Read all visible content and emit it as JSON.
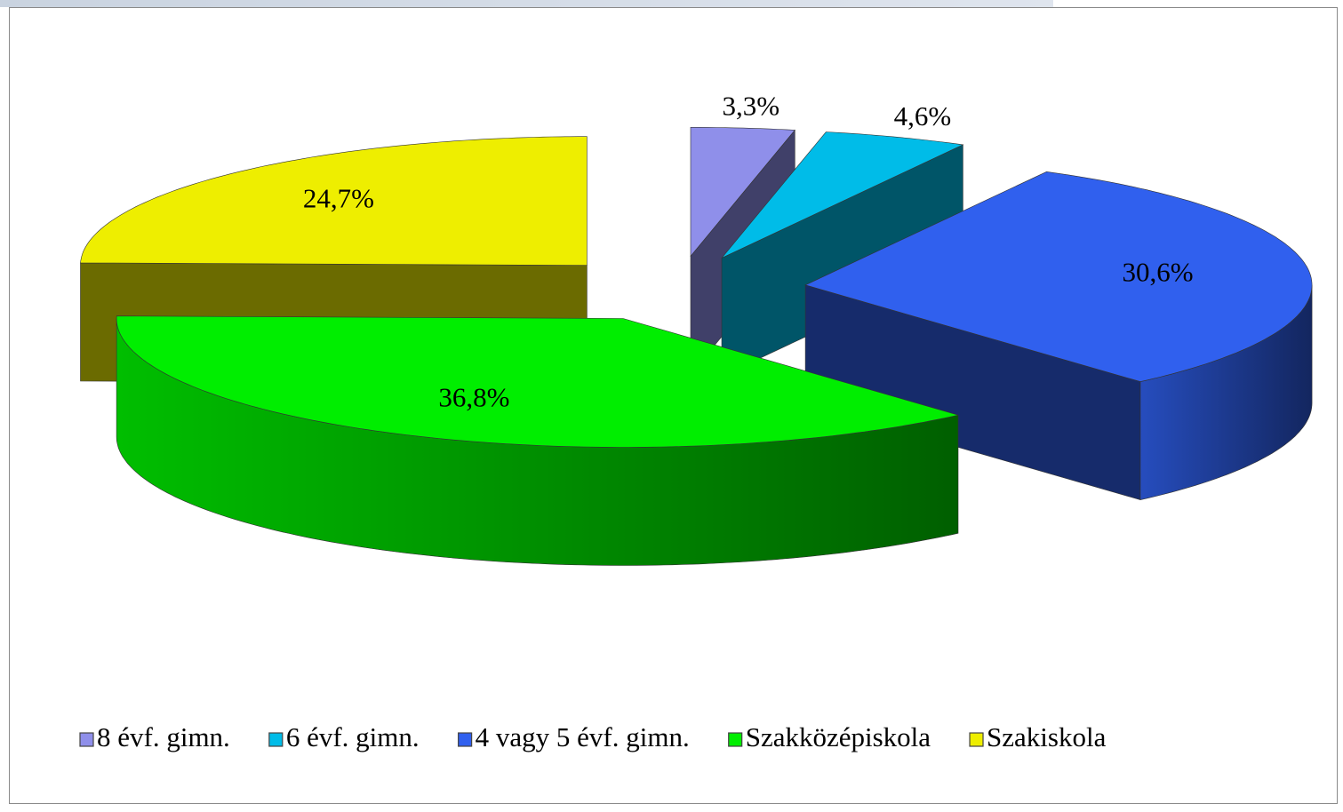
{
  "chart_data": {
    "type": "pie",
    "three_d": true,
    "exploded": true,
    "categories": [
      "8 évf. gimn.",
      "6 évf. gimn.",
      "4 vagy 5 évf. gimn.",
      "Szakközépiskola",
      "Szakiskola"
    ],
    "values": [
      3.3,
      4.6,
      30.6,
      36.8,
      24.7
    ],
    "value_labels": [
      "3,3%",
      "4,6%",
      "30,6%",
      "36,8%",
      "24,7%"
    ],
    "colors": [
      "#8f8fea",
      "#00bce8",
      "#3060ee",
      "#00ee00",
      "#eeee00"
    ],
    "legend": "bottom"
  }
}
